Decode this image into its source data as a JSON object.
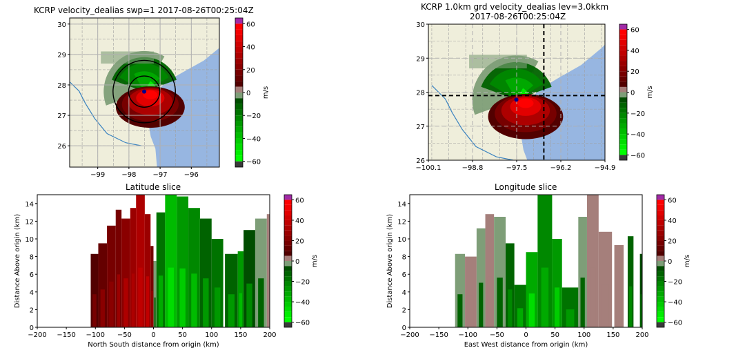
{
  "colormap": {
    "label": "m/s",
    "vmin": -65,
    "vmax": 65,
    "ticks": [
      60,
      40,
      20,
      0,
      -20,
      -40,
      -60
    ],
    "bins": [
      {
        "from": 60,
        "to": 65,
        "color": "#a02ba6"
      },
      {
        "from": 55,
        "to": 60,
        "color": "#ff0000"
      },
      {
        "from": 50,
        "to": 55,
        "color": "#f40000"
      },
      {
        "from": 45,
        "to": 50,
        "color": "#e20000"
      },
      {
        "from": 40,
        "to": 45,
        "color": "#d00000"
      },
      {
        "from": 35,
        "to": 40,
        "color": "#c00000"
      },
      {
        "from": 30,
        "to": 35,
        "color": "#ad0000"
      },
      {
        "from": 25,
        "to": 30,
        "color": "#9b0000"
      },
      {
        "from": 20,
        "to": 25,
        "color": "#8a0000"
      },
      {
        "from": 15,
        "to": 20,
        "color": "#770000"
      },
      {
        "from": 10,
        "to": 15,
        "color": "#650000"
      },
      {
        "from": 5,
        "to": 10,
        "color": "#520000"
      },
      {
        "from": 0,
        "to": 5,
        "color": "#a57f7b"
      },
      {
        "from": -5,
        "to": 0,
        "color": "#7e9e78"
      },
      {
        "from": -10,
        "to": -5,
        "color": "#004d00"
      },
      {
        "from": -15,
        "to": -10,
        "color": "#006300"
      },
      {
        "from": -20,
        "to": -15,
        "color": "#007300"
      },
      {
        "from": -25,
        "to": -20,
        "color": "#008800"
      },
      {
        "from": -30,
        "to": -25,
        "color": "#009900"
      },
      {
        "from": -35,
        "to": -30,
        "color": "#00aa00"
      },
      {
        "from": -40,
        "to": -35,
        "color": "#00bb00"
      },
      {
        "from": -45,
        "to": -40,
        "color": "#00cc00"
      },
      {
        "from": -50,
        "to": -45,
        "color": "#00dd00"
      },
      {
        "from": -55,
        "to": -50,
        "color": "#00ee00"
      },
      {
        "from": -60,
        "to": -55,
        "color": "#00ff00"
      },
      {
        "from": -65,
        "to": -60,
        "color": "#3a3a3a"
      }
    ]
  },
  "map_colors": {
    "land": "#efeedb",
    "ocean": "#97b6e1",
    "river": "#3b83c0",
    "border": "#a0a0a0",
    "grid": "#b0b0b0"
  },
  "chart_data": [
    {
      "type": "heatmap",
      "title": "KCRP velocity_dealias swp=1 2017-08-26T00:25:04Z",
      "xlabel": "",
      "ylabel": "",
      "xlim": [
        -99.9,
        -95.1
      ],
      "ylim": [
        25.3,
        30.2
      ],
      "xticks": [
        -99,
        -98,
        -97,
        -96
      ],
      "yticks": [
        26,
        27,
        28,
        29,
        30
      ],
      "xtick_labels": [
        "−99",
        "−98",
        "−97",
        "−96"
      ],
      "ytick_labels": [
        "26",
        "27",
        "28",
        "29",
        "30"
      ],
      "radar_site": {
        "lon": -97.51,
        "lat": 27.78
      },
      "range_rings": [
        {
          "lon": -97.51,
          "lat": 27.78,
          "radius_deg": 0.5
        },
        {
          "lon": -97.51,
          "lat": 27.78,
          "radius_deg": 1.0
        }
      ],
      "grid": true,
      "colorbar_label": "m/s"
    },
    {
      "type": "heatmap",
      "title": "KCRP 1.0km grd velocity_dealias lev=3.0kkm",
      "subtitle": "2017-08-26T00:25:04Z",
      "xlim": [
        -100.1,
        -94.9
      ],
      "ylim": [
        26,
        30
      ],
      "xticks": [
        -100.1,
        -98.8,
        -97.5,
        -96.2,
        -94.9
      ],
      "yticks": [
        26,
        27,
        28,
        29,
        30
      ],
      "xtick_labels": [
        "−100.1",
        "−98.8",
        "−97.5",
        "−96.2",
        "−94.9"
      ],
      "ytick_labels": [
        "26",
        "27",
        "28",
        "29",
        "30"
      ],
      "radar_site": {
        "lon": -97.51,
        "lat": 27.78
      },
      "crosshair": {
        "lon": -96.7,
        "lat": 27.9
      },
      "grid": true,
      "colorbar_label": "m/s"
    },
    {
      "type": "heatmap",
      "title": "Latitude slice",
      "xlabel": "North South distance from origin (km)",
      "ylabel": "Distance Above origin (km)",
      "xlim": [
        -200,
        200
      ],
      "ylim": [
        0,
        15
      ],
      "xticks": [
        -200,
        -150,
        -100,
        -50,
        0,
        50,
        100,
        150,
        200
      ],
      "yticks": [
        0,
        2,
        4,
        6,
        8,
        10,
        12,
        14
      ],
      "xtick_labels": [
        "−200",
        "−150",
        "−100",
        "−50",
        "0",
        "50",
        "100",
        "150",
        "200"
      ],
      "ytick_labels": [
        "0",
        "2",
        "4",
        "6",
        "8",
        "10",
        "12",
        "14"
      ],
      "columns": [
        {
          "x0": -108,
          "x1": -95,
          "top": 8.3,
          "value": 8
        },
        {
          "x0": -95,
          "x1": -80,
          "top": 9.5,
          "value": 12
        },
        {
          "x0": -80,
          "x1": -65,
          "top": 11.5,
          "value": 16
        },
        {
          "x0": -65,
          "x1": -55,
          "top": 13.3,
          "value": 18
        },
        {
          "x0": -55,
          "x1": -40,
          "top": 12.3,
          "value": 22
        },
        {
          "x0": -40,
          "x1": -30,
          "top": 13.5,
          "value": 26
        },
        {
          "x0": -30,
          "x1": -15,
          "top": 15,
          "value": 30
        },
        {
          "x0": -15,
          "x1": -5,
          "top": 12.8,
          "value": 28
        },
        {
          "x0": -5,
          "x1": 0,
          "top": 9.2,
          "value": 18
        },
        {
          "x0": 0,
          "x1": 5,
          "top": 7.5,
          "value": -2
        },
        {
          "x0": 5,
          "x1": 20,
          "top": 13,
          "value": -20
        },
        {
          "x0": 20,
          "x1": 40,
          "top": 15,
          "value": -38
        },
        {
          "x0": 40,
          "x1": 60,
          "top": 14.8,
          "value": -30
        },
        {
          "x0": 60,
          "x1": 80,
          "top": 13.5,
          "value": -25
        },
        {
          "x0": 80,
          "x1": 100,
          "top": 12.3,
          "value": -15
        },
        {
          "x0": 100,
          "x1": 120,
          "top": 10,
          "value": -18
        },
        {
          "x0": 123,
          "x1": 145,
          "top": 8.3,
          "value": -14
        },
        {
          "x0": 145,
          "x1": 155,
          "top": 8.6,
          "value": -28
        },
        {
          "x0": 155,
          "x1": 175,
          "top": 11,
          "value": -10
        },
        {
          "x0": 175,
          "x1": 195,
          "top": 12.3,
          "value": -3
        },
        {
          "x0": 195,
          "x1": 200,
          "top": 12.8,
          "value": 2
        }
      ],
      "colorbar_label": "m/s"
    },
    {
      "type": "heatmap",
      "title": "Longitude slice",
      "xlabel": "East West distance from origin (km)",
      "ylabel": "Distance Above origin (km)",
      "xlim": [
        -200,
        200
      ],
      "ylim": [
        0,
        15
      ],
      "xticks": [
        -200,
        -150,
        -100,
        -50,
        0,
        50,
        100,
        150,
        200
      ],
      "yticks": [
        0,
        2,
        4,
        6,
        8,
        10,
        12,
        14
      ],
      "xtick_labels": [
        "−200",
        "−150",
        "−100",
        "−50",
        "0",
        "50",
        "100",
        "150",
        "200"
      ],
      "ytick_labels": [
        "0",
        "2",
        "4",
        "6",
        "8",
        "10",
        "12",
        "14"
      ],
      "columns": [
        {
          "x0": -122,
          "x1": -105,
          "top": 8.3,
          "value": -3
        },
        {
          "x0": -105,
          "x1": -85,
          "top": 8.0,
          "value": 2
        },
        {
          "x0": -85,
          "x1": -70,
          "top": 11.2,
          "value": -3
        },
        {
          "x0": -70,
          "x1": -55,
          "top": 12.8,
          "value": 2
        },
        {
          "x0": -55,
          "x1": -35,
          "top": 12.5,
          "value": -3
        },
        {
          "x0": -35,
          "x1": -20,
          "top": 9.5,
          "value": -12
        },
        {
          "x0": -20,
          "x1": 0,
          "top": 4.8,
          "value": -20
        },
        {
          "x0": 0,
          "x1": 20,
          "top": 8.5,
          "value": -35
        },
        {
          "x0": 20,
          "x1": 45,
          "top": 15,
          "value": -22
        },
        {
          "x0": 45,
          "x1": 62,
          "top": 10,
          "value": -30
        },
        {
          "x0": 62,
          "x1": 90,
          "top": 4.5,
          "value": -18
        },
        {
          "x0": 90,
          "x1": 105,
          "top": 12.5,
          "value": -3
        },
        {
          "x0": 105,
          "x1": 125,
          "top": 15,
          "value": 3
        },
        {
          "x0": 125,
          "x1": 148,
          "top": 10.8,
          "value": 2
        },
        {
          "x0": 152,
          "x1": 168,
          "top": 9.3,
          "value": 2
        },
        {
          "x0": 175,
          "x1": 185,
          "top": 10.3,
          "value": -12
        },
        {
          "x0": 196,
          "x1": 200,
          "top": 8.3,
          "value": -8
        }
      ],
      "colorbar_label": "m/s"
    }
  ]
}
